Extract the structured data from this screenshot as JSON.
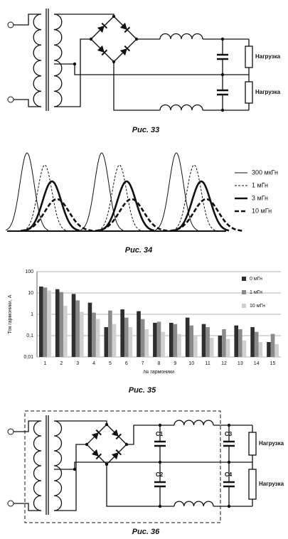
{
  "figures": {
    "fig33": {
      "caption": "Рис. 33",
      "loads": [
        "Нагрузка",
        "Нагрузка"
      ]
    },
    "fig34": {
      "caption": "Рис. 34",
      "legend": [
        "300 мкГн",
        "1 мГн",
        "3 мГн",
        "10 мГн"
      ]
    },
    "fig35": {
      "caption": "Рис. 35"
    },
    "fig36": {
      "caption": "Рис. 36",
      "capacitors": [
        "C1",
        "C2",
        "C3",
        "C4"
      ],
      "loads": [
        "Нагрузка",
        "Нагрузка"
      ]
    }
  },
  "chart_data": {
    "type": "bar",
    "log_scale": true,
    "grid": true,
    "legend": "upper right",
    "y_label": "Ток гармоники, А",
    "x_label": "№ гармоники",
    "categories": [
      "1",
      "2",
      "3",
      "4",
      "5",
      "6",
      "7",
      "8",
      "9",
      "10",
      "11",
      "12",
      "13",
      "14",
      "15"
    ],
    "series": [
      {
        "name": "0 мГн",
        "color": "#2e2e2e",
        "values": [
          20,
          15,
          9,
          3.5,
          0.25,
          1.7,
          1.4,
          0.4,
          0.4,
          0.7,
          0.35,
          0.1,
          0.3,
          0.25,
          0.05
        ]
      },
      {
        "name": "1 мГн",
        "color": "#8a8a8a",
        "values": [
          18,
          11,
          4.5,
          1.2,
          1.5,
          0.7,
          0.6,
          0.45,
          0.35,
          0.3,
          0.25,
          0.2,
          0.2,
          0.15,
          0.12
        ]
      },
      {
        "name": "10 мГн",
        "color": "#cfcfcf",
        "values": [
          13,
          2.5,
          1.3,
          0.6,
          0.35,
          0.25,
          0.2,
          0.15,
          0.12,
          0.1,
          0.08,
          0.07,
          0.06,
          0.05,
          0.04
        ]
      }
    ],
    "ylim": [
      0.01,
      100
    ],
    "yticks": [
      {
        "value": 0.01,
        "label": "0,01"
      },
      {
        "value": 0.1,
        "label": "0,1"
      },
      1,
      10,
      100
    ]
  }
}
